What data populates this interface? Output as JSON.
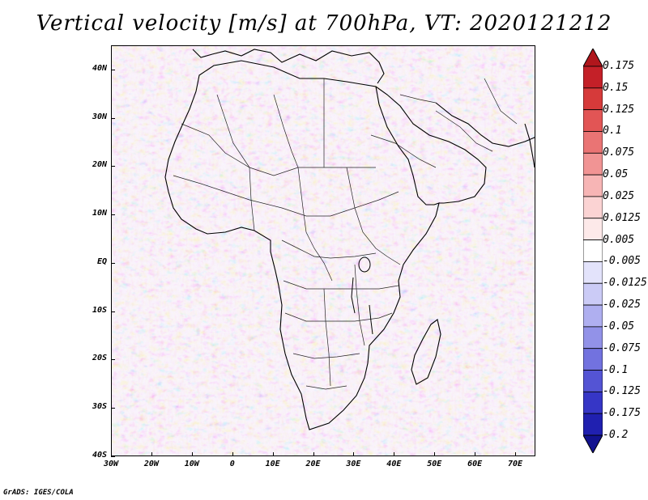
{
  "title": "Vertical velocity [m/s] at 700hPa, VT: 2020121212",
  "credit": "GrADS: IGES/COLA",
  "colors": {
    "background_field": "#e8e8fa",
    "coast": "#000000",
    "border": "#000000"
  },
  "map": {
    "lon_range": [
      -30,
      75
    ],
    "lat_range": [
      -40,
      45
    ],
    "lat_ticks": [
      {
        "label": "40N",
        "lat": 40
      },
      {
        "label": "30N",
        "lat": 30
      },
      {
        "label": "20N",
        "lat": 20
      },
      {
        "label": "10N",
        "lat": 10
      },
      {
        "label": "EQ",
        "lat": 0
      },
      {
        "label": "10S",
        "lat": -10
      },
      {
        "label": "20S",
        "lat": -20
      },
      {
        "label": "30S",
        "lat": -30
      },
      {
        "label": "40S",
        "lat": -40
      }
    ],
    "lon_ticks": [
      {
        "label": "30W",
        "lon": -30
      },
      {
        "label": "20W",
        "lon": -20
      },
      {
        "label": "10W",
        "lon": -10
      },
      {
        "label": "0",
        "lon": 0
      },
      {
        "label": "10E",
        "lon": 10
      },
      {
        "label": "20E",
        "lon": 20
      },
      {
        "label": "30E",
        "lon": 30
      },
      {
        "label": "40E",
        "lon": 40
      },
      {
        "label": "50E",
        "lon": 50
      },
      {
        "label": "60E",
        "lon": 60
      },
      {
        "label": "70E",
        "lon": 70
      }
    ]
  },
  "colorbar": {
    "levels": [
      {
        "label": "0.175",
        "color": "#b0161c"
      },
      {
        "label": "0.15",
        "color": "#c42028"
      },
      {
        "label": "0.125",
        "color": "#d63a3a"
      },
      {
        "label": "0.1",
        "color": "#e25555"
      },
      {
        "label": "0.075",
        "color": "#ea7474"
      },
      {
        "label": "0.05",
        "color": "#f19494"
      },
      {
        "label": "0.025",
        "color": "#f7b5b5"
      },
      {
        "label": "0.0125",
        "color": "#fbd3d3"
      },
      {
        "label": "0.005",
        "color": "#fde9e9"
      },
      {
        "label": "-0.005",
        "color": "#ffffff"
      },
      {
        "label": "-0.0125",
        "color": "#e3e3fb"
      },
      {
        "label": "-0.025",
        "color": "#cbcbf6"
      },
      {
        "label": "-0.05",
        "color": "#afaff0"
      },
      {
        "label": "-0.075",
        "color": "#9292e8"
      },
      {
        "label": "-0.1",
        "color": "#7272df"
      },
      {
        "label": "-0.125",
        "color": "#5454d4"
      },
      {
        "label": "-0.175",
        "color": "#3636c6"
      },
      {
        "label": "-0.2",
        "color": "#2020b0"
      },
      {
        "label": "",
        "color": "#12128f"
      }
    ]
  }
}
